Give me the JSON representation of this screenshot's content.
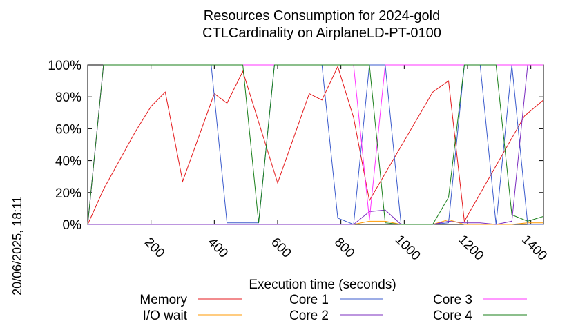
{
  "side_stamp": "20/06/2025, 18:11",
  "chart_data": {
    "type": "line",
    "title_lines": [
      "Resources Consumption for 2024-gold",
      "CTLCardinality on AirplaneLD-PT-0100"
    ],
    "xlabel": "Execution time (seconds)",
    "ylabel": "",
    "xlim": [
      0,
      1440
    ],
    "ylim": [
      0,
      100
    ],
    "x_ticks": [
      200,
      400,
      600,
      800,
      1000,
      1200,
      1400
    ],
    "y_ticks": [
      0,
      20,
      40,
      60,
      80,
      100
    ],
    "y_tick_labels": [
      "0%",
      "20%",
      "40%",
      "60%",
      "80%",
      "100%"
    ],
    "grid": false,
    "legend_position": "bottom",
    "series": [
      {
        "name": "Memory",
        "color": "#e41a1c",
        "points": [
          [
            0,
            0
          ],
          [
            50,
            22
          ],
          [
            100,
            40
          ],
          [
            150,
            58
          ],
          [
            200,
            74
          ],
          [
            245,
            83
          ],
          [
            300,
            27
          ],
          [
            400,
            82
          ],
          [
            440,
            76
          ],
          [
            490,
            96
          ],
          [
            600,
            26
          ],
          [
            700,
            82
          ],
          [
            740,
            78
          ],
          [
            790,
            99
          ],
          [
            840,
            67
          ],
          [
            890,
            15
          ],
          [
            1090,
            83
          ],
          [
            1140,
            90
          ],
          [
            1190,
            2
          ],
          [
            1380,
            68
          ],
          [
            1440,
            78
          ]
        ]
      },
      {
        "name": "I/O wait",
        "color": "#ff9900",
        "points": [
          [
            0,
            0
          ],
          [
            840,
            0
          ],
          [
            890,
            2
          ],
          [
            940,
            2
          ],
          [
            990,
            0
          ],
          [
            1090,
            0
          ],
          [
            1140,
            3
          ],
          [
            1190,
            0
          ],
          [
            1340,
            0
          ],
          [
            1390,
            1
          ],
          [
            1440,
            1
          ]
        ]
      },
      {
        "name": "Core 1",
        "color": "#3b5bcc",
        "points": [
          [
            0,
            0
          ],
          [
            50,
            100
          ],
          [
            390,
            100
          ],
          [
            440,
            1
          ],
          [
            540,
            1
          ],
          [
            590,
            100
          ],
          [
            740,
            100
          ],
          [
            790,
            4
          ],
          [
            840,
            0
          ],
          [
            890,
            100
          ],
          [
            940,
            100
          ],
          [
            990,
            0
          ],
          [
            1090,
            0
          ],
          [
            1140,
            1
          ],
          [
            1190,
            100
          ],
          [
            1240,
            100
          ],
          [
            1290,
            0
          ],
          [
            1340,
            100
          ],
          [
            1390,
            0
          ],
          [
            1440,
            0
          ]
        ]
      },
      {
        "name": "Core 2",
        "color": "#7b2cbf",
        "points": [
          [
            0,
            0
          ],
          [
            790,
            0
          ],
          [
            840,
            0
          ],
          [
            890,
            8
          ],
          [
            940,
            9
          ],
          [
            990,
            0
          ],
          [
            1090,
            0
          ],
          [
            1140,
            2
          ],
          [
            1190,
            1
          ],
          [
            1240,
            1
          ],
          [
            1290,
            0
          ],
          [
            1340,
            2
          ],
          [
            1390,
            100
          ],
          [
            1440,
            100
          ]
        ]
      },
      {
        "name": "Core 3",
        "color": "#ff33ff",
        "points": [
          [
            0,
            0
          ],
          [
            50,
            100
          ],
          [
            790,
            100
          ],
          [
            840,
            100
          ],
          [
            890,
            3
          ],
          [
            940,
            100
          ],
          [
            990,
            100
          ],
          [
            1440,
            100
          ]
        ]
      },
      {
        "name": "Core 4",
        "color": "#1a7f1a",
        "points": [
          [
            0,
            0
          ],
          [
            50,
            100
          ],
          [
            490,
            100
          ],
          [
            540,
            1
          ],
          [
            590,
            100
          ],
          [
            840,
            100
          ],
          [
            890,
            100
          ],
          [
            940,
            1
          ],
          [
            990,
            0
          ],
          [
            1090,
            0
          ],
          [
            1140,
            17
          ],
          [
            1190,
            100
          ],
          [
            1290,
            100
          ],
          [
            1340,
            6
          ],
          [
            1390,
            2
          ],
          [
            1440,
            5
          ]
        ]
      }
    ]
  }
}
